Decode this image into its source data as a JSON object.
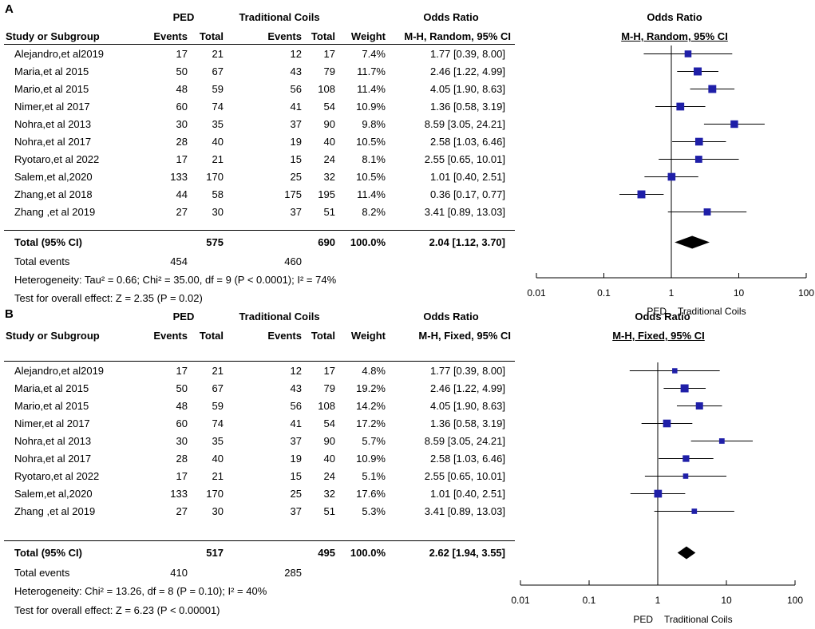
{
  "chart_data": [
    {
      "type": "forest",
      "panel_label": "A",
      "title": "Odds Ratio",
      "method": "M-H, Random, 95% CI",
      "header": {
        "group1": "PED",
        "group2": "Traditional Coils",
        "study_col": "Study or Subgroup",
        "events": "Events",
        "total": "Total",
        "weight": "Weight",
        "odds_ratio": "Odds Ratio"
      },
      "studies": [
        {
          "name": "Alejandro,et al2019",
          "e1": "17",
          "t1": "21",
          "e2": "12",
          "t2": "17",
          "weight": "7.4%",
          "ci": "1.77 [0.39, 8.00]",
          "or": 1.77,
          "lo": 0.39,
          "hi": 8.0,
          "w": 7.4
        },
        {
          "name": "Maria,et al 2015",
          "e1": "50",
          "t1": "67",
          "e2": "43",
          "t2": "79",
          "weight": "11.7%",
          "ci": "2.46 [1.22, 4.99]",
          "or": 2.46,
          "lo": 1.22,
          "hi": 4.99,
          "w": 11.7
        },
        {
          "name": "Mario,et al 2015",
          "e1": "48",
          "t1": "59",
          "e2": "56",
          "t2": "108",
          "weight": "11.4%",
          "ci": "4.05 [1.90, 8.63]",
          "or": 4.05,
          "lo": 1.9,
          "hi": 8.63,
          "w": 11.4
        },
        {
          "name": "Nimer,et al 2017",
          "e1": "60",
          "t1": "74",
          "e2": "41",
          "t2": "54",
          "weight": "10.9%",
          "ci": "1.36 [0.58, 3.19]",
          "or": 1.36,
          "lo": 0.58,
          "hi": 3.19,
          "w": 10.9
        },
        {
          "name": "Nohra,et al 2013",
          "e1": "30",
          "t1": "35",
          "e2": "37",
          "t2": "90",
          "weight": "9.8%",
          "ci": "8.59 [3.05, 24.21]",
          "or": 8.59,
          "lo": 3.05,
          "hi": 24.21,
          "w": 9.8
        },
        {
          "name": "Nohra,et al 2017",
          "e1": "28",
          "t1": "40",
          "e2": "19",
          "t2": "40",
          "weight": "10.5%",
          "ci": "2.58 [1.03, 6.46]",
          "or": 2.58,
          "lo": 1.03,
          "hi": 6.46,
          "w": 10.5
        },
        {
          "name": "Ryotaro,et al 2022",
          "e1": "17",
          "t1": "21",
          "e2": "15",
          "t2": "24",
          "weight": "8.1%",
          "ci": "2.55 [0.65, 10.01]",
          "or": 2.55,
          "lo": 0.65,
          "hi": 10.01,
          "w": 8.1
        },
        {
          "name": "Salem,et al,2020",
          "e1": "133",
          "t1": "170",
          "e2": "25",
          "t2": "32",
          "weight": "10.5%",
          "ci": "1.01 [0.40, 2.51]",
          "or": 1.01,
          "lo": 0.4,
          "hi": 2.51,
          "w": 10.5
        },
        {
          "name": "Zhang,et al 2018",
          "e1": "44",
          "t1": "58",
          "e2": "175",
          "t2": "195",
          "weight": "11.4%",
          "ci": "0.36 [0.17, 0.77]",
          "or": 0.36,
          "lo": 0.17,
          "hi": 0.77,
          "w": 11.4
        },
        {
          "name": "Zhang ,et al 2019",
          "e1": "27",
          "t1": "30",
          "e2": "37",
          "t2": "51",
          "weight": "8.2%",
          "ci": "3.41 [0.89, 13.03]",
          "or": 3.41,
          "lo": 0.89,
          "hi": 13.03,
          "w": 8.2
        }
      ],
      "total": {
        "label": "Total (95% CI)",
        "t1": "575",
        "t2": "690",
        "weight": "100.0%",
        "ci": "2.04 [1.12, 3.70]",
        "or": 2.04,
        "lo": 1.12,
        "hi": 3.7
      },
      "total_events": {
        "label": "Total events",
        "e1": "454",
        "e2": "460"
      },
      "heterogeneity": "Heterogeneity: Tau² = 0.66; Chi² = 35.00, df = 9 (P < 0.0001); I² = 74%",
      "overall_effect": "Test for overall effect: Z = 2.35 (P = 0.02)",
      "x_ticks": [
        "0.01",
        "0.1",
        "1",
        "10",
        "100"
      ],
      "xlim": [
        0.01,
        100
      ],
      "x_scale": "log",
      "axis_label_left": "PED",
      "axis_label_right": "Traditional Coils"
    },
    {
      "type": "forest",
      "panel_label": "B",
      "title": "Odds Ratio",
      "method": "M-H, Fixed, 95% CI",
      "header": {
        "group1": "PED",
        "group2": "Traditional Coils",
        "study_col": "Study or Subgroup",
        "events": "Events",
        "total": "Total",
        "weight": "Weight",
        "odds_ratio": "Odds Ratio"
      },
      "studies": [
        {
          "name": "Alejandro,et al2019",
          "e1": "17",
          "t1": "21",
          "e2": "12",
          "t2": "17",
          "weight": "4.8%",
          "ci": "1.77 [0.39, 8.00]",
          "or": 1.77,
          "lo": 0.39,
          "hi": 8.0,
          "w": 4.8
        },
        {
          "name": "Maria,et al 2015",
          "e1": "50",
          "t1": "67",
          "e2": "43",
          "t2": "79",
          "weight": "19.2%",
          "ci": "2.46 [1.22, 4.99]",
          "or": 2.46,
          "lo": 1.22,
          "hi": 4.99,
          "w": 19.2
        },
        {
          "name": "Mario,et al 2015",
          "e1": "48",
          "t1": "59",
          "e2": "56",
          "t2": "108",
          "weight": "14.2%",
          "ci": "4.05 [1.90, 8.63]",
          "or": 4.05,
          "lo": 1.9,
          "hi": 8.63,
          "w": 14.2
        },
        {
          "name": "Nimer,et al 2017",
          "e1": "60",
          "t1": "74",
          "e2": "41",
          "t2": "54",
          "weight": "17.2%",
          "ci": "1.36 [0.58, 3.19]",
          "or": 1.36,
          "lo": 0.58,
          "hi": 3.19,
          "w": 17.2
        },
        {
          "name": "Nohra,et al 2013",
          "e1": "30",
          "t1": "35",
          "e2": "37",
          "t2": "90",
          "weight": "5.7%",
          "ci": "8.59 [3.05, 24.21]",
          "or": 8.59,
          "lo": 3.05,
          "hi": 24.21,
          "w": 5.7
        },
        {
          "name": "Nohra,et al 2017",
          "e1": "28",
          "t1": "40",
          "e2": "19",
          "t2": "40",
          "weight": "10.9%",
          "ci": "2.58 [1.03, 6.46]",
          "or": 2.58,
          "lo": 1.03,
          "hi": 6.46,
          "w": 10.9
        },
        {
          "name": "Ryotaro,et al 2022",
          "e1": "17",
          "t1": "21",
          "e2": "15",
          "t2": "24",
          "weight": "5.1%",
          "ci": "2.55 [0.65, 10.01]",
          "or": 2.55,
          "lo": 0.65,
          "hi": 10.01,
          "w": 5.1
        },
        {
          "name": "Salem,et al,2020",
          "e1": "133",
          "t1": "170",
          "e2": "25",
          "t2": "32",
          "weight": "17.6%",
          "ci": "1.01 [0.40, 2.51]",
          "or": 1.01,
          "lo": 0.4,
          "hi": 2.51,
          "w": 17.6
        },
        {
          "name": "Zhang ,et al 2019",
          "e1": "27",
          "t1": "30",
          "e2": "37",
          "t2": "51",
          "weight": "5.3%",
          "ci": "3.41 [0.89, 13.03]",
          "or": 3.41,
          "lo": 0.89,
          "hi": 13.03,
          "w": 5.3
        }
      ],
      "total": {
        "label": "Total (95% CI)",
        "t1": "517",
        "t2": "495",
        "weight": "100.0%",
        "ci": "2.62 [1.94, 3.55]",
        "or": 2.62,
        "lo": 1.94,
        "hi": 3.55
      },
      "total_events": {
        "label": "Total events",
        "e1": "410",
        "e2": "285"
      },
      "heterogeneity": "Heterogeneity: Chi² = 13.26, df = 8 (P = 0.10); I² = 40%",
      "overall_effect": "Test for overall effect: Z = 6.23 (P < 0.00001)",
      "x_ticks": [
        "0.01",
        "0.1",
        "1",
        "10",
        "100"
      ],
      "xlim": [
        0.01,
        100
      ],
      "x_scale": "log",
      "axis_label_left": "PED",
      "axis_label_right": "Traditional Coils"
    }
  ],
  "colors": {
    "marker": "#1f1fa8",
    "line": "#000000",
    "diamond": "#000000"
  }
}
